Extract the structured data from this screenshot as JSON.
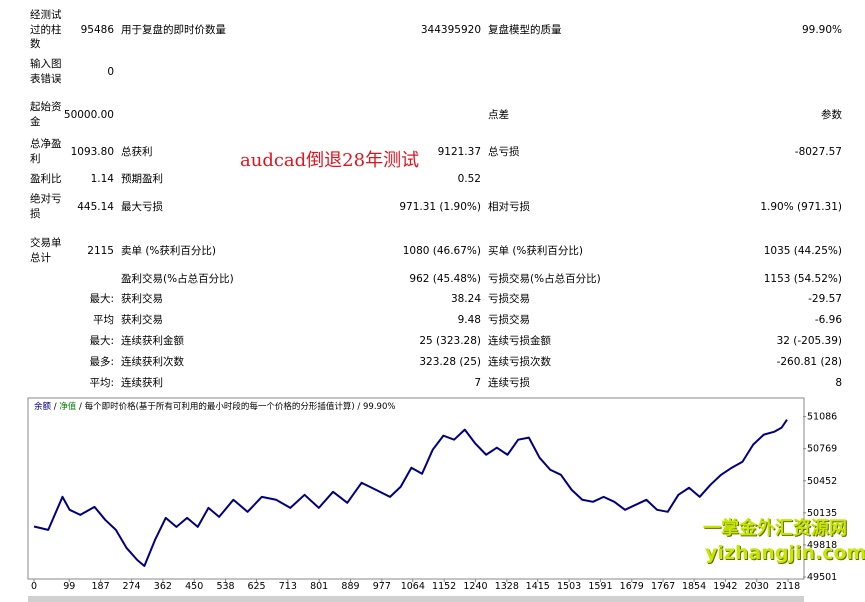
{
  "report": {
    "rows": [
      [
        "经测试过的柱数",
        "95486",
        "用于复盘的即时价数量",
        "344395920",
        "复盘模型的质量",
        "99.90%"
      ],
      [
        "输入图表错误",
        "0"
      ],
      [
        "起始资金",
        "50000.00",
        "点差",
        "参数"
      ],
      [
        "总净盈利",
        "1093.80",
        "总获利",
        "9121.37",
        "总亏损",
        "-8027.57"
      ],
      [
        "盈利比",
        "1.14",
        "预期盈利",
        "0.52"
      ],
      [
        "绝对亏损",
        "445.14",
        "最大亏损",
        "971.31 (1.90%)",
        "相对亏损",
        "1.90% (971.31)"
      ],
      [
        "交易单总计",
        "2115",
        "卖单 (%获利百分比)",
        "1080 (46.67%)",
        "买单 (%获利百分比)",
        "1035 (44.25%)"
      ],
      [
        "盈利交易(%占总百分比)",
        "962 (45.48%)",
        "亏损交易(%占总百分比)",
        "1153 (54.52%)"
      ],
      [
        "最大:",
        "获利交易",
        "38.24",
        "亏损交易",
        "-29.57"
      ],
      [
        "平均",
        "获利交易",
        "9.48",
        "亏损交易",
        "-6.96"
      ],
      [
        "最大:",
        "连续获利金额",
        "25 (323.28)",
        "连续亏损金额",
        "32 (-205.39)"
      ],
      [
        "最多:",
        "连续获利次数",
        "323.28 (25)",
        "连续亏损次数",
        "-260.81 (28)"
      ],
      [
        "平均:",
        "连续获利",
        "7",
        "连续亏损",
        "8"
      ]
    ]
  },
  "overlay": "audcad倒退28年测试",
  "watermark": {
    "name": "一掌金外汇资源网",
    "url": "yizhangjin.com"
  },
  "chart_data": {
    "type": "line",
    "header": [
      "余额",
      "净值",
      "每个即时价格(基于所有可利用的最小时段的每一个价格的分形插值计算)",
      "99.90%"
    ],
    "series": [
      {
        "name": "余额",
        "color": "#000080",
        "x": [
          0,
          40,
          80,
          100,
          130,
          170,
          200,
          230,
          260,
          290,
          310,
          340,
          370,
          400,
          430,
          460,
          490,
          520,
          560,
          600,
          640,
          680,
          720,
          760,
          800,
          840,
          880,
          920,
          960,
          1000,
          1030,
          1060,
          1090,
          1120,
          1150,
          1180,
          1210,
          1240,
          1270,
          1300,
          1330,
          1360,
          1390,
          1420,
          1450,
          1480,
          1510,
          1540,
          1570,
          1600,
          1630,
          1660,
          1690,
          1720,
          1750,
          1780,
          1810,
          1840,
          1870,
          1900,
          1930,
          1960,
          1990,
          2020,
          2050,
          2080,
          2100,
          2115
        ],
        "values": [
          50000,
          49967,
          50293,
          50165,
          50115,
          50194,
          50066,
          49967,
          49788,
          49669,
          49610,
          49868,
          50085,
          49996,
          50085,
          49996,
          50184,
          50095,
          50264,
          50145,
          50293,
          50264,
          50184,
          50313,
          50184,
          50343,
          50234,
          50432,
          50363,
          50293,
          50393,
          50581,
          50521,
          50759,
          50898,
          50858,
          50957,
          50818,
          50709,
          50779,
          50709,
          50858,
          50878,
          50680,
          50561,
          50511,
          50363,
          50264,
          50244,
          50293,
          50244,
          50165,
          50214,
          50264,
          50165,
          50145,
          50313,
          50383,
          50293,
          50412,
          50511,
          50581,
          50640,
          50809,
          50908,
          50937,
          50977,
          51056
        ]
      }
    ],
    "xlim": [
      0,
      2160
    ],
    "xticks": [
      0,
      99,
      187,
      274,
      362,
      450,
      538,
      625,
      713,
      801,
      889,
      977,
      1064,
      1152,
      1240,
      1328,
      1415,
      1503,
      1591,
      1679,
      1767,
      1854,
      1942,
      2030,
      2118
    ],
    "ylim": [
      49501,
      51250
    ],
    "yticks": [
      49501,
      49818,
      50135,
      50452,
      50769,
      51086
    ]
  }
}
